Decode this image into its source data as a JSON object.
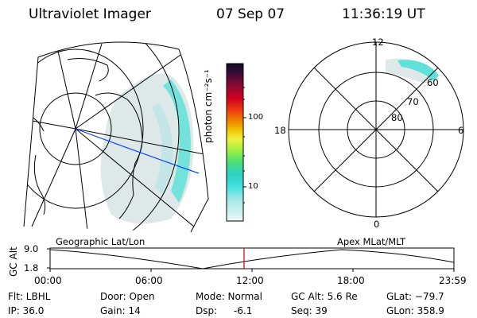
{
  "header": {
    "title": "Ultraviolet Imager",
    "date": "07 Sep 07",
    "time": "11:36:19 UT"
  },
  "colorbar": {
    "unit_label": "photon cm⁻²s⁻¹",
    "ticks": [
      "100",
      "10"
    ],
    "colors": [
      "#101020",
      "#3a0a3a",
      "#6a0a3a",
      "#a00a20",
      "#d00020",
      "#f04010",
      "#f07000",
      "#f0a000",
      "#f0d020",
      "#e0f040",
      "#a0f040",
      "#60e060",
      "#30d0a0",
      "#30e0e0",
      "#90e8e8",
      "#c8eeee",
      "#e8f4f4"
    ]
  },
  "geo_map": {
    "label": "Geographic Lat/Lon"
  },
  "polar_plot": {
    "label": "Apex MLat/MLT",
    "mlt_labels": {
      "top": "12",
      "left": "18",
      "right": "6",
      "bottom": "0"
    },
    "lat_labels": [
      "60",
      "70",
      "80"
    ]
  },
  "altitude_strip": {
    "ylabel": "GC Alt",
    "y_ticks": [
      "9.0",
      "1.8"
    ],
    "x_ticks": [
      "00:00",
      "06:00",
      "12:00",
      "18:00",
      "23:59"
    ],
    "current_time_marker_hours": 11.6
  },
  "info": {
    "flt": "Flt: LBHL",
    "ip": "IP: 36.0",
    "door": "Door: Open",
    "gain": "Gain: 14",
    "mode": "Mode: Normal",
    "dsp_label": "Dsp:",
    "dsp_value": "-6.1",
    "gc_alt": "GC Alt: 5.6 Re",
    "seq": "Seq: 39",
    "glat": "GLat: −79.7",
    "glon": "GLon: 358.9"
  }
}
